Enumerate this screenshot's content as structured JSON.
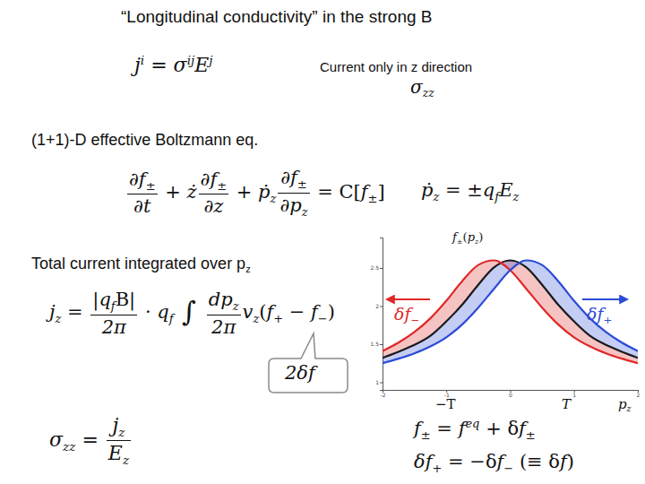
{
  "slide": {
    "title": "“Longitudinal conductivity” in the strong B",
    "note": "Current only in z direction",
    "ohm": [
      {
        "b": "j",
        "sup": "i"
      },
      " = ",
      {
        "b": "σ",
        "sup": "ij"
      },
      {
        "b": "E",
        "sup": "j"
      }
    ],
    "sigma_zz": [
      {
        "b": "σ",
        "sub": "zz"
      }
    ],
    "boltzmann_heading": "(1+1)-D effective Boltzmann eq.",
    "boltzmann": [
      {
        "frac": [
          [
            "∂",
            {
              "b": "f",
              "sub": "±"
            }
          ],
          [
            "∂",
            "t"
          ]
        ]
      },
      " + ",
      "ż",
      {
        "frac": [
          [
            "∂",
            {
              "b": "f",
              "sub": "±"
            }
          ],
          [
            "∂",
            "z"
          ]
        ]
      },
      " + ",
      {
        "b": "ṗ",
        "sub": "z"
      },
      {
        "frac": [
          [
            "∂",
            {
              "b": "f",
              "sub": "±"
            }
          ],
          [
            "∂",
            {
              "b": "p",
              "sub": "z"
            }
          ]
        ]
      },
      " = ",
      "C[",
      {
        "b": "f",
        "sub": "±"
      },
      "]"
    ],
    "force": [
      {
        "b": "ṗ",
        "sub": "z"
      },
      " = ±",
      {
        "b": "q",
        "sub": "f"
      },
      {
        "b": "E",
        "sub": "z"
      }
    ],
    "current_heading": [
      "Total current integrated over p",
      {
        "b": "",
        "sub": "z"
      }
    ],
    "current": [
      {
        "b": "j",
        "sub": "z"
      },
      " = ",
      {
        "frac": [
          [
            "|",
            {
              "b": "q",
              "sub": "f"
            },
            "B|"
          ],
          [
            "2π"
          ]
        ]
      },
      " · ",
      {
        "b": "q",
        "sub": "f"
      },
      " ∫ ",
      {
        "frac": [
          [
            "d",
            {
              "b": "p",
              "sub": "z"
            }
          ],
          [
            "2π"
          ]
        ]
      },
      {
        "b": "v",
        "sub": "z"
      },
      "(",
      {
        "b": "f",
        "sub": "+"
      },
      " − ",
      {
        "b": "f",
        "sub": "−"
      },
      ")"
    ],
    "callout": [
      "2δf"
    ],
    "conductivity": [
      {
        "b": "σ",
        "sub": "zz"
      },
      " = ",
      {
        "frac": [
          [
            {
              "b": "j",
              "sub": "z"
            }
          ],
          [
            {
              "b": "E",
              "sub": "z"
            }
          ]
        ]
      }
    ],
    "decomposition": [
      {
        "b": "f",
        "sub": "±"
      },
      " = ",
      {
        "b": "f",
        "sup": "eq"
      },
      " + δ",
      {
        "b": "f",
        "sub": "±"
      }
    ],
    "symmetry": [
      "δ",
      {
        "b": "f",
        "sub": "+"
      },
      " = −δ",
      {
        "b": "f",
        "sub": "−"
      },
      " (≡ δ",
      "f",
      ")"
    ]
  },
  "chart_data": {
    "type": "line",
    "x": [
      -2,
      -1.75,
      -1.5,
      -1.25,
      -1,
      -0.75,
      -0.5,
      -0.25,
      0,
      0.25,
      0.5,
      0.75,
      1,
      1.25,
      1.5,
      1.75,
      2
    ],
    "xlim": [
      -2,
      2
    ],
    "xticks": [
      -2,
      -1,
      0,
      1,
      2
    ],
    "ylim": [
      0.9,
      2.9
    ],
    "yticks": [
      1,
      1.5,
      2,
      2.5
    ],
    "grid": false,
    "y_label": [
      {
        "b": "f",
        "sub": "±"
      },
      "(",
      {
        "b": "p",
        "sub": "z"
      },
      ")"
    ],
    "x_label": [
      {
        "b": "p",
        "sub": "z"
      }
    ],
    "annotations": [
      [
        "−T"
      ],
      [
        "T"
      ],
      [
        "δ",
        {
          "b": "f",
          "sub": "−"
        }
      ],
      [
        "δ",
        {
          "b": "f",
          "sub": "+"
        }
      ]
    ],
    "series": [
      {
        "color": "#1a1a1a",
        "values": [
          1.32,
          1.4,
          1.49,
          1.61,
          1.8,
          2.02,
          2.28,
          2.51,
          2.6,
          2.51,
          2.28,
          2.02,
          1.8,
          1.61,
          1.49,
          1.4,
          1.32
        ]
      },
      {
        "color": "#e02828",
        "values": [
          1.41,
          1.52,
          1.66,
          1.84,
          2.07,
          2.33,
          2.54,
          2.6,
          2.47,
          2.23,
          1.98,
          1.76,
          1.59,
          1.47,
          1.38,
          1.31,
          1.25
        ]
      },
      {
        "color": "#2a4bd6",
        "values": [
          1.25,
          1.31,
          1.38,
          1.47,
          1.59,
          1.76,
          1.98,
          2.23,
          2.47,
          2.6,
          2.54,
          2.33,
          2.07,
          1.84,
          1.66,
          1.52,
          1.41
        ]
      }
    ]
  }
}
